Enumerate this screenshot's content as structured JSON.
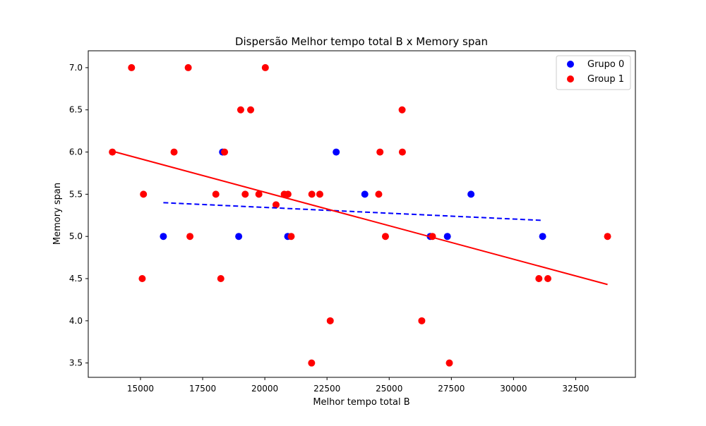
{
  "chart_data": {
    "type": "scatter",
    "title": "Dispersão Melhor tempo total B x Memory span",
    "xlabel": "Melhor tempo total B",
    "ylabel": "Memory span",
    "xlim": [
      12900,
      34900
    ],
    "ylim": [
      3.33,
      7.2
    ],
    "x_ticks": [
      15000,
      17500,
      20000,
      22500,
      25000,
      27500,
      30000,
      32500
    ],
    "x_tick_labels": [
      "15000",
      "17500",
      "20000",
      "22500",
      "25000",
      "27500",
      "30000",
      "32500"
    ],
    "y_ticks": [
      3.5,
      4.0,
      4.5,
      5.0,
      5.5,
      6.0,
      6.5,
      7.0
    ],
    "y_tick_labels": [
      "3.5",
      "4.0",
      "4.5",
      "5.0",
      "5.5",
      "6.0",
      "6.5",
      "7.0"
    ],
    "grid": false,
    "legend_position": "top-right",
    "series": [
      {
        "name": "Grupo 0",
        "color": "#0000ff",
        "points": [
          [
            15920,
            5.0
          ],
          [
            18300,
            6.0
          ],
          [
            18950,
            5.0
          ],
          [
            20920,
            5.0
          ],
          [
            22870,
            6.0
          ],
          [
            24020,
            5.5
          ],
          [
            26650,
            5.0
          ],
          [
            27340,
            5.0
          ],
          [
            28290,
            5.5
          ],
          [
            31170,
            5.0
          ]
        ],
        "trendline": {
          "x": [
            15920,
            31170
          ],
          "y": [
            5.4,
            5.19
          ],
          "style": "dashed"
        }
      },
      {
        "name": "Group 1",
        "color": "#ff0000",
        "points": [
          [
            13870,
            6.0
          ],
          [
            14640,
            7.0
          ],
          [
            15070,
            4.5
          ],
          [
            15120,
            5.5
          ],
          [
            16350,
            6.0
          ],
          [
            16920,
            7.0
          ],
          [
            16990,
            5.0
          ],
          [
            18030,
            5.5
          ],
          [
            18230,
            4.5
          ],
          [
            18380,
            6.0
          ],
          [
            19030,
            6.5
          ],
          [
            19210,
            5.5
          ],
          [
            19430,
            6.5
          ],
          [
            19760,
            5.5
          ],
          [
            20020,
            7.0
          ],
          [
            20450,
            5.375
          ],
          [
            20780,
            5.5
          ],
          [
            20930,
            5.5
          ],
          [
            21060,
            5.0
          ],
          [
            21880,
            3.5
          ],
          [
            21890,
            5.5
          ],
          [
            22210,
            5.5
          ],
          [
            22630,
            4.0
          ],
          [
            24580,
            5.5
          ],
          [
            24630,
            6.0
          ],
          [
            24850,
            5.0
          ],
          [
            25520,
            6.5
          ],
          [
            25530,
            6.0
          ],
          [
            26310,
            4.0
          ],
          [
            26740,
            5.0
          ],
          [
            27420,
            3.5
          ],
          [
            31020,
            4.5
          ],
          [
            31380,
            4.5
          ],
          [
            33780,
            5.0
          ]
        ],
        "trendline": {
          "x": [
            13870,
            33780
          ],
          "y": [
            6.01,
            4.43
          ],
          "style": "solid"
        }
      }
    ]
  }
}
